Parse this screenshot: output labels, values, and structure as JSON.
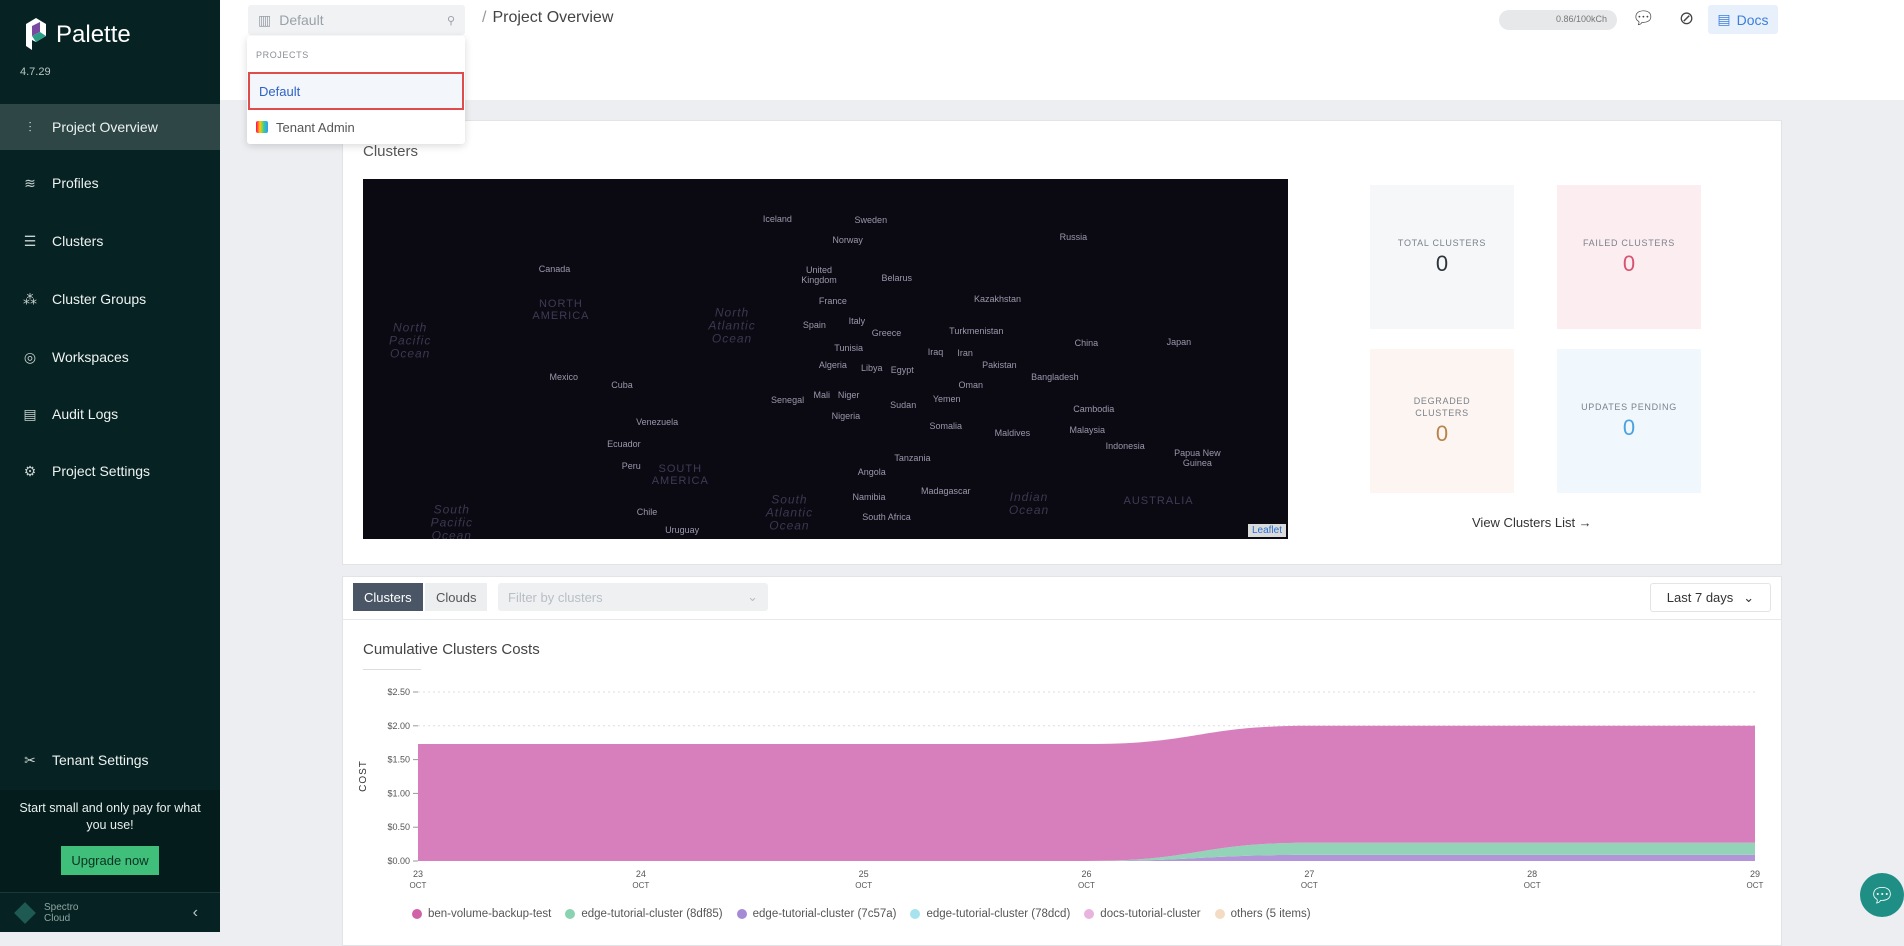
{
  "sidebar": {
    "brand": "Palette",
    "version": "4.7.29",
    "items": [
      {
        "label": "Project Overview",
        "icon": "chart-icon"
      },
      {
        "label": "Profiles",
        "icon": "stack-icon"
      },
      {
        "label": "Clusters",
        "icon": "list-icon"
      },
      {
        "label": "Cluster Groups",
        "icon": "network-icon"
      },
      {
        "label": "Workspaces",
        "icon": "target-icon"
      },
      {
        "label": "Audit Logs",
        "icon": "log-icon"
      },
      {
        "label": "Project Settings",
        "icon": "gear-icon"
      }
    ],
    "tenant_settings": "Tenant Settings",
    "promo": "Start small and only pay for what you use!",
    "upgrade": "Upgrade now",
    "footer_brand_line1": "Spectro",
    "footer_brand_line2": "Cloud"
  },
  "topbar": {
    "project": "Default",
    "breadcrumb": "Project Overview",
    "usage": "0.86/100kCh",
    "docs": "Docs"
  },
  "dropdown": {
    "header": "PROJECTS",
    "items": [
      "Default",
      "Tenant Admin"
    ]
  },
  "clusters_card": {
    "title": "Clusters",
    "leaflet": "Leaflet",
    "map_labels": [
      "Iceland",
      "Sweden",
      "Norway",
      "Russia",
      "Canada",
      "United Kingdom",
      "Belarus",
      "France",
      "Kazakhstan",
      "NORTH AMERICA",
      "North Atlantic Ocean",
      "Spain",
      "Italy",
      "Greece",
      "Turkmenistan",
      "China",
      "Japan",
      "North Pacific Ocean",
      "Tunisia",
      "Iraq",
      "Iran",
      "Pakistan",
      "Algeria",
      "Libya",
      "Egypt",
      "Bangladesh",
      "Mexico",
      "Cuba",
      "Oman",
      "Senegal",
      "Mali",
      "Niger",
      "Sudan",
      "Yemen",
      "Cambodia",
      "Venezuela",
      "Nigeria",
      "Somalia",
      "Maldives",
      "Malaysia",
      "Ecuador",
      "Indonesia",
      "Papua New Guinea",
      "Peru",
      "SOUTH AMERICA",
      "Tanzania",
      "Angola",
      "Namibia",
      "Madagascar",
      "Indian Ocean",
      "AUSTRALIA",
      "Chile",
      "South Atlantic Ocean",
      "South Africa",
      "Uruguay",
      "South Pacific Ocean"
    ],
    "stats": [
      {
        "label": "TOTAL CLUSTERS",
        "value": "0",
        "color": "#2f343b"
      },
      {
        "label": "FAILED CLUSTERS",
        "value": "0",
        "color": "#d9536f"
      },
      {
        "label": "DEGRADED CLUSTERS",
        "value": "0",
        "color": "#b9834a"
      },
      {
        "label": "UPDATES PENDING",
        "value": "0",
        "color": "#4aa3e0"
      }
    ],
    "view_link": "View Clusters List →"
  },
  "costs": {
    "tabs": [
      "Clusters",
      "Clouds"
    ],
    "filter_placeholder": "Filter by clusters",
    "range": "Last 7 days"
  },
  "chart_data": {
    "type": "area",
    "stacked": true,
    "title": "Cumulative Clusters Costs",
    "ylabel": "COST",
    "xlabel": "",
    "categories": [
      "23 OCT",
      "24 OCT",
      "25 OCT",
      "26 OCT",
      "27 OCT",
      "28 OCT",
      "29 OCT"
    ],
    "x_ticks": [
      [
        "23",
        "OCT"
      ],
      [
        "24",
        "OCT"
      ],
      [
        "25",
        "OCT"
      ],
      [
        "26",
        "OCT"
      ],
      [
        "27",
        "OCT"
      ],
      [
        "28",
        "OCT"
      ],
      [
        "29",
        "OCT"
      ]
    ],
    "y_ticks": [
      "$0.00",
      "$0.50",
      "$1.00",
      "$1.50",
      "$2.00",
      "$2.50"
    ],
    "ylim": [
      0,
      2.5
    ],
    "grid": "horizontal dotted",
    "legend": "bottom",
    "series": [
      {
        "name": "edge-tutorial-cluster (7c57a)",
        "color": "#b394d8",
        "values": [
          0,
          0,
          0,
          0,
          0.09,
          0.09,
          0.09
        ]
      },
      {
        "name": "edge-tutorial-cluster (8df85)",
        "color": "#93d4b8",
        "values": [
          0,
          0,
          0,
          0,
          0.18,
          0.18,
          0.18
        ]
      },
      {
        "name": "ben-volume-backup-test",
        "color": "#d77fbd",
        "values": [
          1.73,
          1.73,
          1.73,
          1.73,
          1.73,
          1.73,
          1.73
        ]
      }
    ],
    "legend_items": [
      {
        "name": "ben-volume-backup-test",
        "color": "#d063a8"
      },
      {
        "name": "edge-tutorial-cluster (8df85)",
        "color": "#8ad3b0"
      },
      {
        "name": "edge-tutorial-cluster (7c57a)",
        "color": "#a58ad6"
      },
      {
        "name": "edge-tutorial-cluster (78dcd)",
        "color": "#a6e3ee"
      },
      {
        "name": "docs-tutorial-cluster",
        "color": "#e9b3dd"
      },
      {
        "name": "others (5 items)",
        "color": "#f3dcc3"
      }
    ]
  }
}
